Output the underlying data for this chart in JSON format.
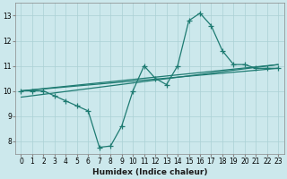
{
  "title": "",
  "xlabel": "Humidex (Indice chaleur)",
  "xlim": [
    -0.5,
    23.5
  ],
  "ylim": [
    7.5,
    13.5
  ],
  "yticks": [
    8,
    9,
    10,
    11,
    12,
    13
  ],
  "xticks": [
    0,
    1,
    2,
    3,
    4,
    5,
    6,
    7,
    8,
    9,
    10,
    11,
    12,
    13,
    14,
    15,
    16,
    17,
    18,
    19,
    20,
    21,
    22,
    23
  ],
  "bg_color": "#cce8ec",
  "grid_color": "#aad0d4",
  "line_color": "#1e7b72",
  "line1_x": [
    0,
    1,
    2,
    3,
    4,
    5,
    6,
    7,
    8,
    9,
    10,
    11,
    12,
    13,
    14,
    15,
    16,
    17,
    18,
    19,
    20,
    21,
    22,
    23
  ],
  "line1_y": [
    10.0,
    10.0,
    10.0,
    9.8,
    9.6,
    9.4,
    9.2,
    7.75,
    7.8,
    8.6,
    10.0,
    11.0,
    10.5,
    10.25,
    11.0,
    12.8,
    13.1,
    12.6,
    11.6,
    11.05,
    11.05,
    10.9,
    10.9,
    10.9
  ],
  "line2_x": [
    0,
    23
  ],
  "line2_y": [
    10.0,
    10.9
  ],
  "line3_x": [
    0,
    23
  ],
  "line3_y": [
    10.0,
    11.05
  ],
  "line4_x": [
    0,
    23
  ],
  "line4_y": [
    9.75,
    11.05
  ],
  "tick_fontsize": 5.5,
  "xlabel_fontsize": 6.5
}
